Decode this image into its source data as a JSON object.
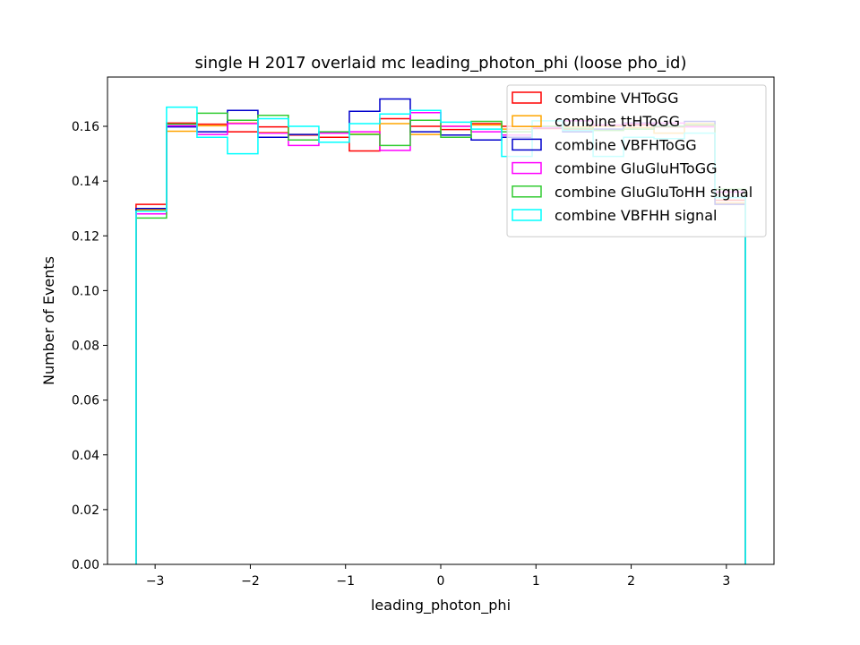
{
  "chart_data": {
    "type": "histogram",
    "title": "single H 2017 overlaid mc leading_photon_phi (loose pho_id)",
    "xlabel": "leading_photon_phi",
    "ylabel": "Number of Events",
    "xlim": [
      -3.5,
      3.5
    ],
    "ylim": [
      0.0,
      0.178
    ],
    "xticks": [
      -3,
      -2,
      -1,
      0,
      1,
      2,
      3
    ],
    "xtick_labels": [
      "−3",
      "−2",
      "−1",
      "0",
      "1",
      "2",
      "3"
    ],
    "yticks": [
      0.0,
      0.02,
      0.04,
      0.06,
      0.08,
      0.1,
      0.12,
      0.14,
      0.16
    ],
    "ytick_labels": [
      "0.00",
      "0.02",
      "0.04",
      "0.06",
      "0.08",
      "0.10",
      "0.12",
      "0.14",
      "0.16"
    ],
    "legend_position": "top-right",
    "bin_edges": [
      -3.2,
      -2.88,
      -2.56,
      -2.24,
      -1.92,
      -1.6,
      -1.28,
      -0.96,
      -0.64,
      -0.32,
      0.0,
      0.32,
      0.64,
      0.96,
      1.28,
      1.6,
      1.92,
      2.24,
      2.56,
      2.88,
      3.2
    ],
    "series": [
      {
        "name": "combine VHToGG",
        "color": "#ff0000",
        "values": [
          0.1315,
          0.1612,
          0.1608,
          0.158,
          0.1598,
          0.1568,
          0.156,
          0.151,
          0.1628,
          0.16,
          0.1588,
          0.161,
          0.16,
          0.1592,
          0.159,
          0.1602,
          0.1605,
          0.1598,
          0.16,
          0.133
        ]
      },
      {
        "name": "combine ttHToGG",
        "color": "#ffa500",
        "values": [
          0.1295,
          0.1582,
          0.1602,
          0.1612,
          0.1578,
          0.157,
          0.1578,
          0.1572,
          0.161,
          0.157,
          0.16,
          0.1605,
          0.159,
          0.16,
          0.1598,
          0.16,
          0.1595,
          0.1575,
          0.161,
          0.132
        ]
      },
      {
        "name": "combine VBFHToGG",
        "color": "#0000cc",
        "values": [
          0.13,
          0.1598,
          0.158,
          0.1658,
          0.156,
          0.157,
          0.1578,
          0.1655,
          0.17,
          0.158,
          0.1568,
          0.155,
          0.156,
          0.1595,
          0.158,
          0.159,
          0.1612,
          0.16,
          0.1618,
          0.1315
        ]
      },
      {
        "name": "combine GluGluHToGG",
        "color": "#ff00ff",
        "values": [
          0.128,
          0.1602,
          0.157,
          0.161,
          0.1575,
          0.153,
          0.1575,
          0.158,
          0.1512,
          0.165,
          0.16,
          0.158,
          0.1568,
          0.1595,
          0.162,
          0.1605,
          0.161,
          0.1612,
          0.1598,
          0.136
        ]
      },
      {
        "name": "combine GluGluToHH signal",
        "color": "#33cc33",
        "values": [
          0.1265,
          0.1608,
          0.1648,
          0.1622,
          0.164,
          0.155,
          0.158,
          0.157,
          0.153,
          0.1622,
          0.156,
          0.1618,
          0.158,
          0.16,
          0.1592,
          0.1585,
          0.159,
          0.16,
          0.1605,
          0.137
        ]
      },
      {
        "name": "combine VBFHH signal",
        "color": "#00ffff",
        "values": [
          0.129,
          0.167,
          0.156,
          0.15,
          0.1628,
          0.16,
          0.1542,
          0.161,
          0.1645,
          0.1658,
          0.1615,
          0.159,
          0.149,
          0.162,
          0.1585,
          0.149,
          0.156,
          0.1555,
          0.1575,
          0.134
        ]
      }
    ]
  }
}
